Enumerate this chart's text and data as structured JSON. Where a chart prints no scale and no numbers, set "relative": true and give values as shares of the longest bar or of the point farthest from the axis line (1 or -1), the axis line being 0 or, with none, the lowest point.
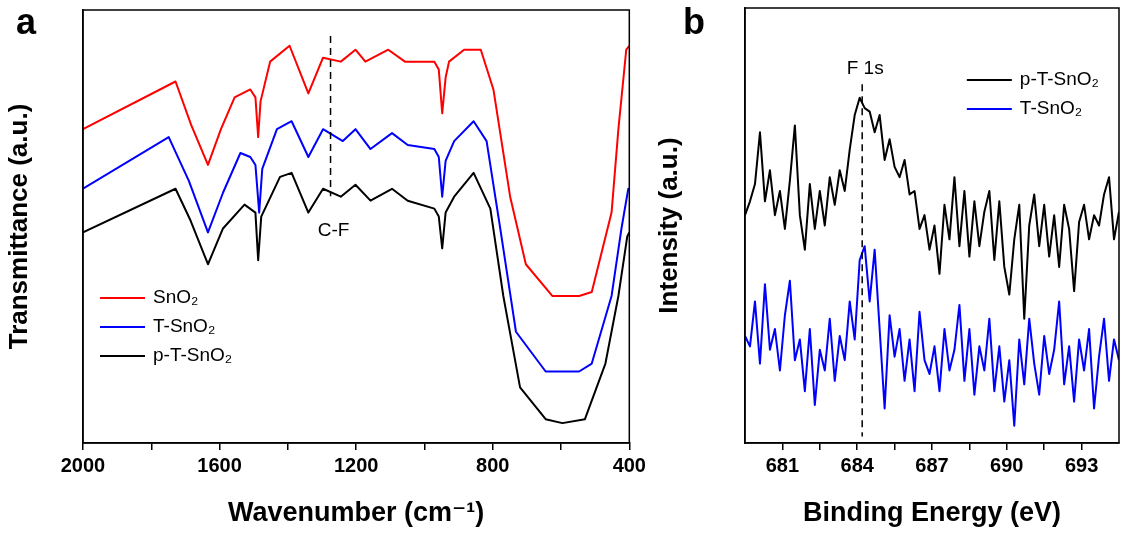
{
  "chart_data": [
    {
      "type": "line",
      "title": "a",
      "xlabel": "Wavenumber (cm⁻¹)",
      "ylabel": "Transmittance (a.u.)",
      "relative": true,
      "xlim": [
        2000,
        400
      ],
      "xticks": [
        2000,
        {
          "value": 1800,
          "label": null
        },
        1600,
        {
          "value": 1400,
          "label": null
        },
        1200,
        {
          "value": 1000,
          "label": null
        },
        800,
        {
          "value": 600,
          "label": null
        },
        400
      ],
      "legend": "bottom left",
      "ref_lines": [
        {
          "axis": "x",
          "value": 1275,
          "label": "C-F",
          "color": "#000000",
          "line_style": "dashed"
        }
      ],
      "series": [
        {
          "name": "SnO₂",
          "color": "#ff0000",
          "x": [
            2000,
            1729,
            1683,
            1634,
            1596,
            1556,
            1510,
            1495,
            1487,
            1480,
            1452,
            1395,
            1340,
            1297,
            1245,
            1202,
            1173,
            1106,
            1057,
            971,
            958,
            948,
            938,
            928,
            884,
            835,
            798,
            749,
            703,
            625,
            547,
            510,
            452,
            432,
            409,
            400
          ],
          "values": [
            0.79,
            0.91,
            0.8,
            0.7,
            0.79,
            0.87,
            0.89,
            0.87,
            0.77,
            0.86,
            0.96,
            1.0,
            0.88,
            0.97,
            0.96,
            0.99,
            0.96,
            0.99,
            0.96,
            0.96,
            0.94,
            0.83,
            0.92,
            0.96,
            0.99,
            0.99,
            0.89,
            0.62,
            0.45,
            0.37,
            0.37,
            0.38,
            0.58,
            0.79,
            0.99,
            1.0
          ]
        },
        {
          "name": "T-SnO₂",
          "color": "#0000ff",
          "x": [
            2000,
            1749,
            1690,
            1634,
            1590,
            1539,
            1510,
            1495,
            1484,
            1475,
            1432,
            1389,
            1340,
            1297,
            1239,
            1202,
            1158,
            1095,
            1049,
            971,
            958,
            948,
            938,
            913,
            856,
            818,
            778,
            732,
            645,
            547,
            510,
            452,
            423,
            403,
            400
          ],
          "values": [
            0.64,
            0.77,
            0.66,
            0.53,
            0.63,
            0.73,
            0.72,
            0.7,
            0.58,
            0.69,
            0.79,
            0.81,
            0.72,
            0.79,
            0.76,
            0.79,
            0.74,
            0.78,
            0.75,
            0.74,
            0.72,
            0.62,
            0.71,
            0.76,
            0.81,
            0.76,
            0.54,
            0.28,
            0.18,
            0.18,
            0.2,
            0.37,
            0.54,
            0.64,
            0.64
          ]
        },
        {
          "name": "p-T-SnO₂",
          "color": "#000000",
          "x": [
            2000,
            1729,
            1685,
            1634,
            1590,
            1527,
            1495,
            1487,
            1478,
            1423,
            1389,
            1340,
            1297,
            1245,
            1202,
            1158,
            1095,
            1049,
            971,
            958,
            948,
            938,
            913,
            856,
            807,
            769,
            720,
            645,
            596,
            530,
            470,
            432,
            406,
            400
          ],
          "values": [
            0.53,
            0.64,
            0.56,
            0.45,
            0.54,
            0.6,
            0.58,
            0.46,
            0.57,
            0.67,
            0.68,
            0.58,
            0.64,
            0.62,
            0.65,
            0.61,
            0.64,
            0.61,
            0.59,
            0.57,
            0.49,
            0.58,
            0.62,
            0.68,
            0.59,
            0.37,
            0.14,
            0.06,
            0.05,
            0.06,
            0.2,
            0.37,
            0.52,
            0.53
          ]
        }
      ]
    },
    {
      "type": "line",
      "title": "b",
      "xlabel": "Binding Energy (eV)",
      "ylabel": "Intensity (a.u.)",
      "relative": true,
      "xlim": [
        679.5,
        694.5
      ],
      "xticks": [
        681,
        {
          "value": 682.5,
          "label": null
        },
        684,
        {
          "value": 685.5,
          "label": null
        },
        687,
        {
          "value": 688.5,
          "label": null
        },
        690,
        {
          "value": 691.5,
          "label": null
        },
        693
      ],
      "legend": "top right",
      "ref_lines": [
        {
          "axis": "x",
          "value": 684.2,
          "label": "F 1s",
          "color": "#000000",
          "line_style": "dashed"
        }
      ],
      "x": [
        679.5,
        679.7,
        679.9,
        680.1,
        680.3,
        680.5,
        680.7,
        680.9,
        681.1,
        681.3,
        681.5,
        681.7,
        681.9,
        682.1,
        682.3,
        682.5,
        682.7,
        682.9,
        683.1,
        683.3,
        683.5,
        683.7,
        683.9,
        684.1,
        684.3,
        684.5,
        684.7,
        684.9,
        685.1,
        685.3,
        685.5,
        685.7,
        685.9,
        686.1,
        686.3,
        686.5,
        686.7,
        686.9,
        687.1,
        687.3,
        687.5,
        687.7,
        687.9,
        688.1,
        688.3,
        688.5,
        688.7,
        688.9,
        689.1,
        689.3,
        689.5,
        689.7,
        689.9,
        690.1,
        690.3,
        690.5,
        690.7,
        690.9,
        691.1,
        691.3,
        691.5,
        691.7,
        691.9,
        692.1,
        692.3,
        692.5,
        692.7,
        692.9,
        693.1,
        693.3,
        693.5,
        693.7,
        693.9,
        694.1,
        694.3,
        694.5
      ],
      "series": [
        {
          "name": "p-T-SnO₂",
          "color": "#000000",
          "values": [
            0.66,
            0.7,
            0.75,
            0.9,
            0.7,
            0.79,
            0.66,
            0.73,
            0.62,
            0.76,
            0.92,
            0.66,
            0.56,
            0.75,
            0.62,
            0.73,
            0.63,
            0.77,
            0.69,
            0.79,
            0.73,
            0.85,
            0.95,
            1,
            0.97,
            0.96,
            0.9,
            0.95,
            0.82,
            0.88,
            0.8,
            0.77,
            0.82,
            0.72,
            0.73,
            0.62,
            0.66,
            0.56,
            0.63,
            0.49,
            0.69,
            0.59,
            0.77,
            0.57,
            0.73,
            0.54,
            0.7,
            0.57,
            0.67,
            0.73,
            0.53,
            0.7,
            0.51,
            0.43,
            0.59,
            0.69,
            0.36,
            0.63,
            0.72,
            0.57,
            0.69,
            0.54,
            0.66,
            0.51,
            0.69,
            0.62,
            0.44,
            0.64,
            0.69,
            0.59,
            0.66,
            0.63,
            0.72,
            0.77,
            0.59,
            0.67
          ]
        },
        {
          "name": "T-SnO₂",
          "color": "#0000ff",
          "values": [
            0.31,
            0.28,
            0.41,
            0.23,
            0.46,
            0.27,
            0.33,
            0.21,
            0.37,
            0.47,
            0.24,
            0.3,
            0.15,
            0.33,
            0.11,
            0.27,
            0.21,
            0.36,
            0.18,
            0.31,
            0.24,
            0.41,
            0.3,
            0.53,
            0.57,
            0.41,
            0.56,
            0.33,
            0.1,
            0.37,
            0.25,
            0.33,
            0.18,
            0.3,
            0.15,
            0.38,
            0.24,
            0.2,
            0.28,
            0.15,
            0.33,
            0.21,
            0.27,
            0.4,
            0.18,
            0.33,
            0.14,
            0.28,
            0.21,
            0.36,
            0.15,
            0.28,
            0.12,
            0.24,
            0.05,
            0.3,
            0.17,
            0.36,
            0.23,
            0.14,
            0.31,
            0.2,
            0.27,
            0.41,
            0.17,
            0.28,
            0.12,
            0.3,
            0.21,
            0.33,
            0.1,
            0.25,
            0.36,
            0.18,
            0.3,
            0.24
          ]
        }
      ]
    }
  ]
}
